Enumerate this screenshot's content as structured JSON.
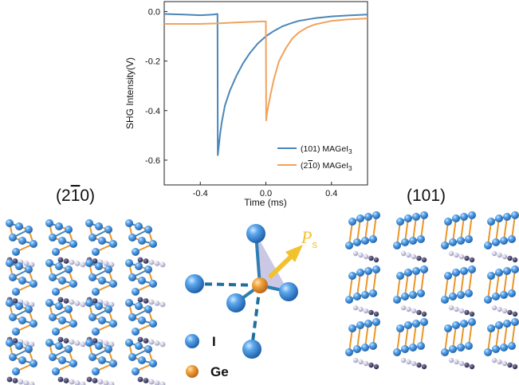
{
  "chart_data": {
    "type": "line",
    "title": "",
    "xlabel": "Time (ms)",
    "ylabel": "SHG Intensity(V)",
    "xlim": [
      -0.62,
      0.62
    ],
    "ylim": [
      -0.7,
      0.04
    ],
    "xticks": [
      -0.4,
      0.0,
      0.4
    ],
    "xtick_labels": [
      "-0.4",
      "0.0",
      "0.4"
    ],
    "yticks": [
      0.0,
      -0.2,
      -0.4,
      -0.6
    ],
    "ytick_labels": [
      "0.0",
      "-0.2",
      "-0.4",
      "-0.6"
    ],
    "legend_position": "bottom-right",
    "series": [
      {
        "name_main": "(101) MAGeI",
        "name_sub": "3",
        "color": "#4a86b8",
        "x": [
          -0.62,
          -0.5,
          -0.4,
          -0.32,
          -0.295,
          -0.293,
          -0.29,
          -0.28,
          -0.27,
          -0.25,
          -0.22,
          -0.18,
          -0.14,
          -0.1,
          -0.05,
          0.0,
          0.05,
          0.1,
          0.15,
          0.2,
          0.3,
          0.4,
          0.5,
          0.62
        ],
        "y": [
          -0.01,
          -0.012,
          -0.015,
          -0.012,
          -0.01,
          -0.58,
          -0.56,
          -0.5,
          -0.45,
          -0.38,
          -0.32,
          -0.26,
          -0.21,
          -0.17,
          -0.13,
          -0.1,
          -0.078,
          -0.06,
          -0.048,
          -0.038,
          -0.027,
          -0.02,
          -0.016,
          -0.012
        ]
      },
      {
        "name_main": "(2",
        "name_bar": "1",
        "name_rest": "0) MAGeI",
        "name_sub": "3",
        "color": "#f0a35e",
        "x": [
          -0.62,
          -0.5,
          -0.4,
          -0.3,
          -0.2,
          -0.1,
          -0.02,
          0.0,
          0.002,
          0.005,
          0.015,
          0.03,
          0.05,
          0.08,
          0.12,
          0.16,
          0.2,
          0.25,
          0.3,
          0.4,
          0.5,
          0.62
        ],
        "y": [
          -0.05,
          -0.05,
          -0.05,
          -0.048,
          -0.045,
          -0.042,
          -0.04,
          -0.04,
          -0.44,
          -0.42,
          -0.38,
          -0.33,
          -0.27,
          -0.2,
          -0.15,
          -0.11,
          -0.085,
          -0.065,
          -0.052,
          -0.038,
          -0.032,
          -0.028
        ]
      }
    ]
  },
  "diagram": {
    "left_face_prefix": "(2",
    "left_face_bar": "1",
    "left_face_suffix": "0)",
    "right_face": "(101)",
    "polarization_label": "P",
    "polarization_sub": "s",
    "legend_iodine": "I",
    "legend_germanium": "Ge",
    "colors": {
      "iodine": "#3a86d4",
      "germanium": "#e8962c",
      "bond": "#1f6f9e",
      "arrow": "#f2c12e",
      "organic_dark": "#2e2c4e",
      "organic_light": "#b7b4d4"
    }
  }
}
